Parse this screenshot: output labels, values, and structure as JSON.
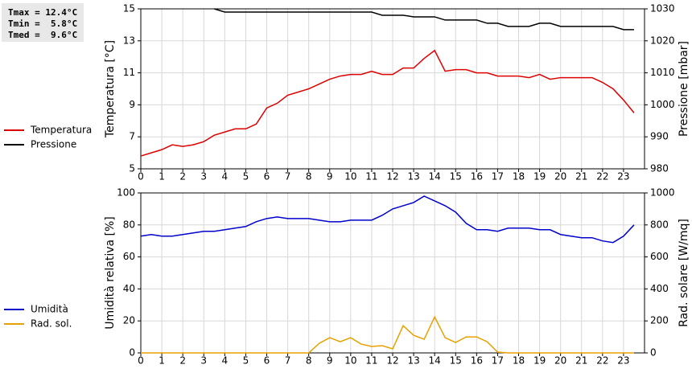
{
  "stats": [
    "Tmax = 12.4°C",
    "Tmin =  5.8°C",
    "Tmed =  9.6°C"
  ],
  "chart_data": [
    {
      "type": "line",
      "ylabel": "Temperatura [°C]",
      "y2label": "Pressione [mbar]",
      "x": [
        0,
        0.5,
        1,
        1.5,
        2,
        2.5,
        3,
        3.5,
        4,
        4.5,
        5,
        5.5,
        6,
        6.5,
        7,
        7.5,
        8,
        8.5,
        9,
        9.5,
        10,
        10.5,
        11,
        11.5,
        12,
        12.5,
        13,
        13.5,
        14,
        14.5,
        15,
        15.5,
        16,
        16.5,
        17,
        17.5,
        18,
        18.5,
        19,
        19.5,
        20,
        20.5,
        21,
        21.5,
        22,
        22.5,
        23,
        23.5
      ],
      "xlim": [
        0,
        24
      ],
      "xticks": [
        0,
        1,
        2,
        3,
        4,
        5,
        6,
        7,
        8,
        9,
        10,
        11,
        12,
        13,
        14,
        15,
        16,
        17,
        18,
        19,
        20,
        21,
        22,
        23
      ],
      "ylim": [
        5,
        15
      ],
      "yticks": [
        5,
        7,
        9,
        11,
        13,
        15
      ],
      "y2lim": [
        980,
        1030
      ],
      "y2ticks": [
        980,
        990,
        1000,
        1010,
        1020,
        1030
      ],
      "grid": true,
      "series": [
        {
          "name": "Temperatura",
          "color": "#dd0000",
          "values": [
            5.8,
            6.0,
            6.2,
            6.5,
            6.4,
            6.5,
            6.7,
            7.1,
            7.3,
            7.5,
            7.5,
            7.8,
            8.8,
            9.1,
            9.6,
            9.8,
            10.0,
            10.3,
            10.6,
            10.8,
            10.9,
            10.9,
            11.1,
            10.9,
            10.9,
            11.3,
            11.3,
            11.9,
            12.4,
            11.1,
            11.2,
            11.2,
            11.0,
            11.0,
            10.8,
            10.8,
            10.8,
            10.7,
            10.9,
            10.6,
            10.7,
            10.7,
            10.7,
            10.7,
            10.4,
            10.0,
            9.3,
            8.5
          ]
        },
        {
          "name": "Pressione",
          "color": "#000000",
          "axis": "y2",
          "values": [
            null,
            null,
            null,
            null,
            null,
            null,
            null,
            1030,
            1029,
            1029,
            1029,
            1029,
            1029,
            1029,
            1029,
            1029,
            1029,
            1029,
            1029,
            1029,
            1029,
            1029,
            1029,
            1028,
            1028,
            1028,
            1027.5,
            1027.5,
            1027.5,
            1026.5,
            1026.5,
            1026.5,
            1026.5,
            1025.5,
            1025.5,
            1024.5,
            1024.5,
            1024.5,
            1025.5,
            1025.5,
            1024.5,
            1024.5,
            1024.5,
            1024.5,
            1024.5,
            1024.5,
            1023.5,
            1023.5
          ]
        }
      ]
    },
    {
      "type": "line",
      "ylabel": "Umidità relativa [%]",
      "y2label": "Rad. solare [W/mq]",
      "x": [
        0,
        0.5,
        1,
        1.5,
        2,
        2.5,
        3,
        3.5,
        4,
        4.5,
        5,
        5.5,
        6,
        6.5,
        7,
        7.5,
        8,
        8.5,
        9,
        9.5,
        10,
        10.5,
        11,
        11.5,
        12,
        12.5,
        13,
        13.5,
        14,
        14.5,
        15,
        15.5,
        16,
        16.5,
        17,
        17.5,
        18,
        18.5,
        19,
        19.5,
        20,
        20.5,
        21,
        21.5,
        22,
        22.5,
        23,
        23.5
      ],
      "xlim": [
        0,
        24
      ],
      "xticks": [
        0,
        1,
        2,
        3,
        4,
        5,
        6,
        7,
        8,
        9,
        10,
        11,
        12,
        13,
        14,
        15,
        16,
        17,
        18,
        19,
        20,
        21,
        22,
        23
      ],
      "ylim": [
        0,
        100
      ],
      "yticks": [
        0,
        20,
        40,
        60,
        80,
        100
      ],
      "y2lim": [
        0,
        1000
      ],
      "y2ticks": [
        0,
        200,
        400,
        600,
        800,
        1000
      ],
      "grid": true,
      "series": [
        {
          "name": "Umidità",
          "color": "#0000cc",
          "values": [
            73,
            74,
            73,
            73,
            74,
            75,
            76,
            76,
            77,
            78,
            79,
            82,
            84,
            85,
            84,
            84,
            84,
            83,
            82,
            82,
            83,
            83,
            83,
            86,
            90,
            92,
            94,
            98,
            95,
            92,
            88,
            81,
            77,
            77,
            76,
            78,
            78,
            78,
            77,
            77,
            74,
            73,
            72,
            72,
            70,
            69,
            73,
            80
          ]
        },
        {
          "name": "Rad. sol.",
          "color": "#e8a000",
          "axis": "y2",
          "values": [
            0,
            0,
            0,
            0,
            0,
            0,
            0,
            0,
            0,
            0,
            0,
            0,
            0,
            0,
            0,
            0,
            0,
            60,
            95,
            70,
            95,
            55,
            40,
            45,
            25,
            170,
            110,
            85,
            225,
            95,
            65,
            100,
            100,
            70,
            5,
            0,
            0,
            0,
            0,
            0,
            0,
            0,
            0,
            0,
            0,
            0,
            0,
            0
          ]
        }
      ]
    }
  ]
}
